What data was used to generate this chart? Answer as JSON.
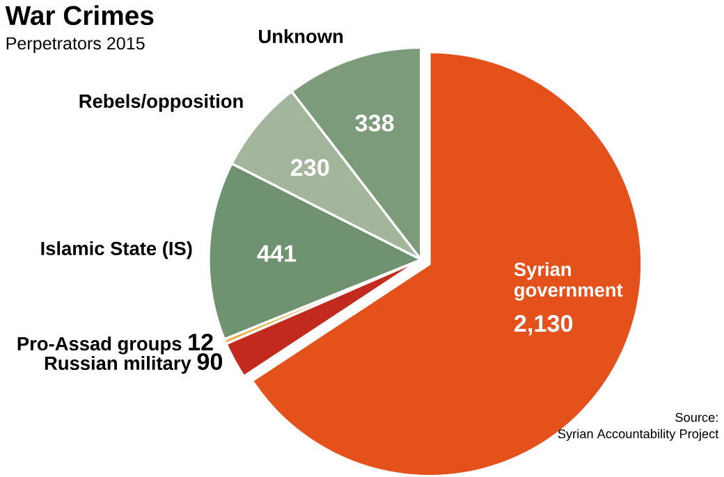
{
  "chart_data": {
    "type": "pie",
    "title": "War Crimes",
    "subtitle": "Perpetrators 2015",
    "categories": [
      "Syrian government",
      "Russian military",
      "Pro-Assad groups",
      "Islamic State (IS)",
      "Rebels/opposition",
      "Unknown"
    ],
    "values": [
      2130,
      90,
      12,
      441,
      230,
      338
    ],
    "value_labels": [
      "2,130",
      "90",
      "12",
      "441",
      "230",
      "338"
    ],
    "colors": [
      "#e4511b",
      "#c22a1d",
      "#e9b04a",
      "#6f9270",
      "#a3b59b",
      "#7b9b7b"
    ],
    "annotations": [
      "Source:",
      "Syrian Accountability Project"
    ]
  }
}
